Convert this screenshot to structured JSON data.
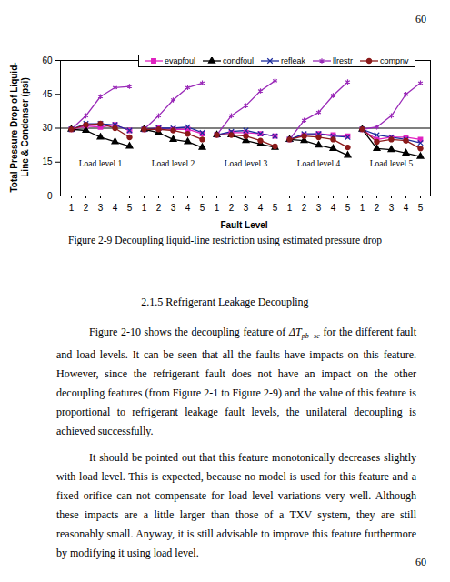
{
  "page_number": "60",
  "chart_data": {
    "type": "line",
    "y_label": [
      "Total Pressure Drop of Liquid-",
      "Line & Condenser  (psi)"
    ],
    "x_label": "Fault Level",
    "groups": [
      "Load level 1",
      "Load level 2",
      "Load level 3",
      "Load level 4",
      "Load level 5"
    ],
    "categories": [
      "1",
      "2",
      "3",
      "4",
      "5",
      "1",
      "2",
      "3",
      "4",
      "5",
      "1",
      "2",
      "3",
      "4",
      "5",
      "1",
      "2",
      "3",
      "4",
      "5",
      "1",
      "2",
      "3",
      "4",
      "5"
    ],
    "ylim": [
      0,
      60
    ],
    "yticks": [
      0,
      15,
      30,
      45,
      60
    ],
    "reference_line": 30,
    "legend": "top",
    "series": [
      {
        "name": "evapfoul",
        "color": "#e020c0",
        "marker": "square",
        "values": [
          29.5,
          31,
          30.5,
          31.5,
          29,
          29.5,
          30,
          29.5,
          29.5,
          27.5,
          27,
          28,
          28,
          27.5,
          26.5,
          25,
          27,
          27.5,
          27,
          26.5,
          29.5,
          25,
          26,
          26,
          25
        ]
      },
      {
        "name": "condfoul",
        "color": "#000000",
        "marker": "triangle",
        "values": [
          29.5,
          29,
          26,
          24,
          22,
          29.5,
          28,
          25,
          24,
          21.5,
          27,
          27,
          24.5,
          23,
          21.5,
          25,
          24.5,
          22.5,
          21,
          18,
          29.5,
          21,
          20.5,
          19,
          17.5
        ]
      },
      {
        "name": "refleak",
        "color": "#1a2a9c",
        "marker": "times",
        "values": [
          29.5,
          32,
          32,
          31.5,
          29,
          29.5,
          30,
          30,
          30.5,
          28,
          27,
          28.5,
          29,
          27.5,
          26.5,
          25,
          27.5,
          27.5,
          26.5,
          26,
          29.5,
          27,
          26,
          25,
          23.5
        ]
      },
      {
        "name": "llrestr",
        "color": "#9a2ab8",
        "marker": "asterisk",
        "values": [
          29.5,
          35.5,
          44,
          48,
          48.5,
          29.5,
          35.5,
          42.5,
          48,
          50,
          27,
          35.5,
          40,
          46.5,
          51,
          25,
          33.5,
          37,
          44.5,
          50.5,
          29.5,
          30.5,
          35.5,
          45,
          50
        ]
      },
      {
        "name": "compnv",
        "color": "#8b1a1a",
        "marker": "circle",
        "values": [
          29.5,
          31.5,
          32,
          30,
          26,
          29.5,
          29.5,
          29,
          27.5,
          25,
          27,
          27,
          26.5,
          24.5,
          22,
          25,
          26.5,
          26,
          25,
          21.5,
          29.5,
          24,
          25,
          24.5,
          21
        ]
      }
    ]
  },
  "caption": "Figure 2-9 Decoupling liquid-line restriction using estimated pressure drop",
  "heading": "2.1.5 Refrigerant Leakage Decoupling",
  "paragraphs": [
    [
      {
        "text": "Figure 2-10 shows the decoupling feature of "
      },
      {
        "text": "ΔT",
        "sub": "pb−sc"
      },
      {
        "text": " for the different fault and load levels. It can be seen that all the faults have impacts on this feature. However, since the refrigerant fault does not have an impact on the other decoupling features (from Figure 2-1 to Figure 2-9) and the value of this feature is proportional to refrigerant leakage fault levels, the unilateral decoupling is achieved successfully."
      }
    ],
    [
      {
        "text": "It should be pointed out that this feature monotonically decreases slightly with load level. This is expected, because no model is used for this feature and a fixed orifice can not compensate for load level variations very well. Although these impacts are a little larger than those of a TXV system, they are still reasonably small. Anyway, it is still advisable to improve this feature furthermore by modifying it using load level."
      }
    ]
  ],
  "footer_page_number": "60"
}
